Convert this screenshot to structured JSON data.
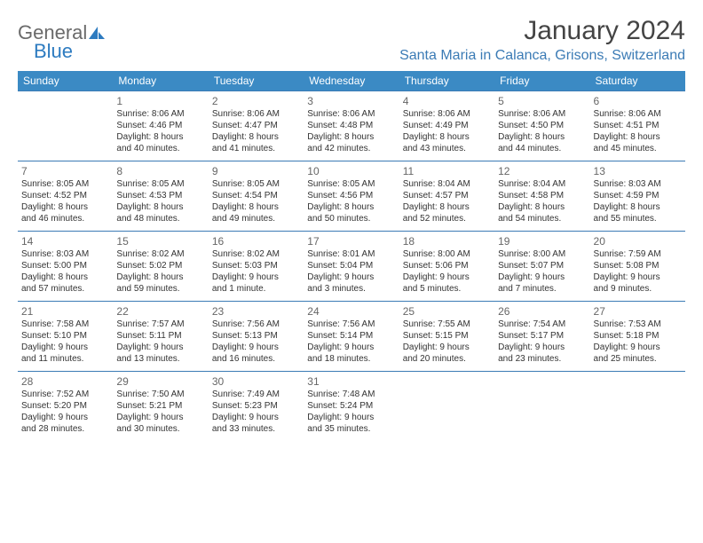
{
  "logo": {
    "word1": "General",
    "word2": "Blue"
  },
  "title": "January 2024",
  "location": "Santa Maria in Calanca, Grisons, Switzerland",
  "colors": {
    "header_bg": "#3b8ac4",
    "border": "#3b7bb5",
    "title_color": "#444444",
    "location_color": "#3b7bb5",
    "logo_gray": "#6a6a6a",
    "logo_blue": "#2d7bc0"
  },
  "fonts": {
    "title_size": 30,
    "location_size": 16,
    "day_header_size": 12,
    "cell_size": 10
  },
  "day_headers": [
    "Sunday",
    "Monday",
    "Tuesday",
    "Wednesday",
    "Thursday",
    "Friday",
    "Saturday"
  ],
  "weeks": [
    [
      null,
      {
        "n": "1",
        "sr": "Sunrise: 8:06 AM",
        "ss": "Sunset: 4:46 PM",
        "d1": "Daylight: 8 hours",
        "d2": "and 40 minutes."
      },
      {
        "n": "2",
        "sr": "Sunrise: 8:06 AM",
        "ss": "Sunset: 4:47 PM",
        "d1": "Daylight: 8 hours",
        "d2": "and 41 minutes."
      },
      {
        "n": "3",
        "sr": "Sunrise: 8:06 AM",
        "ss": "Sunset: 4:48 PM",
        "d1": "Daylight: 8 hours",
        "d2": "and 42 minutes."
      },
      {
        "n": "4",
        "sr": "Sunrise: 8:06 AM",
        "ss": "Sunset: 4:49 PM",
        "d1": "Daylight: 8 hours",
        "d2": "and 43 minutes."
      },
      {
        "n": "5",
        "sr": "Sunrise: 8:06 AM",
        "ss": "Sunset: 4:50 PM",
        "d1": "Daylight: 8 hours",
        "d2": "and 44 minutes."
      },
      {
        "n": "6",
        "sr": "Sunrise: 8:06 AM",
        "ss": "Sunset: 4:51 PM",
        "d1": "Daylight: 8 hours",
        "d2": "and 45 minutes."
      }
    ],
    [
      {
        "n": "7",
        "sr": "Sunrise: 8:05 AM",
        "ss": "Sunset: 4:52 PM",
        "d1": "Daylight: 8 hours",
        "d2": "and 46 minutes."
      },
      {
        "n": "8",
        "sr": "Sunrise: 8:05 AM",
        "ss": "Sunset: 4:53 PM",
        "d1": "Daylight: 8 hours",
        "d2": "and 48 minutes."
      },
      {
        "n": "9",
        "sr": "Sunrise: 8:05 AM",
        "ss": "Sunset: 4:54 PM",
        "d1": "Daylight: 8 hours",
        "d2": "and 49 minutes."
      },
      {
        "n": "10",
        "sr": "Sunrise: 8:05 AM",
        "ss": "Sunset: 4:56 PM",
        "d1": "Daylight: 8 hours",
        "d2": "and 50 minutes."
      },
      {
        "n": "11",
        "sr": "Sunrise: 8:04 AM",
        "ss": "Sunset: 4:57 PM",
        "d1": "Daylight: 8 hours",
        "d2": "and 52 minutes."
      },
      {
        "n": "12",
        "sr": "Sunrise: 8:04 AM",
        "ss": "Sunset: 4:58 PM",
        "d1": "Daylight: 8 hours",
        "d2": "and 54 minutes."
      },
      {
        "n": "13",
        "sr": "Sunrise: 8:03 AM",
        "ss": "Sunset: 4:59 PM",
        "d1": "Daylight: 8 hours",
        "d2": "and 55 minutes."
      }
    ],
    [
      {
        "n": "14",
        "sr": "Sunrise: 8:03 AM",
        "ss": "Sunset: 5:00 PM",
        "d1": "Daylight: 8 hours",
        "d2": "and 57 minutes."
      },
      {
        "n": "15",
        "sr": "Sunrise: 8:02 AM",
        "ss": "Sunset: 5:02 PM",
        "d1": "Daylight: 8 hours",
        "d2": "and 59 minutes."
      },
      {
        "n": "16",
        "sr": "Sunrise: 8:02 AM",
        "ss": "Sunset: 5:03 PM",
        "d1": "Daylight: 9 hours",
        "d2": "and 1 minute."
      },
      {
        "n": "17",
        "sr": "Sunrise: 8:01 AM",
        "ss": "Sunset: 5:04 PM",
        "d1": "Daylight: 9 hours",
        "d2": "and 3 minutes."
      },
      {
        "n": "18",
        "sr": "Sunrise: 8:00 AM",
        "ss": "Sunset: 5:06 PM",
        "d1": "Daylight: 9 hours",
        "d2": "and 5 minutes."
      },
      {
        "n": "19",
        "sr": "Sunrise: 8:00 AM",
        "ss": "Sunset: 5:07 PM",
        "d1": "Daylight: 9 hours",
        "d2": "and 7 minutes."
      },
      {
        "n": "20",
        "sr": "Sunrise: 7:59 AM",
        "ss": "Sunset: 5:08 PM",
        "d1": "Daylight: 9 hours",
        "d2": "and 9 minutes."
      }
    ],
    [
      {
        "n": "21",
        "sr": "Sunrise: 7:58 AM",
        "ss": "Sunset: 5:10 PM",
        "d1": "Daylight: 9 hours",
        "d2": "and 11 minutes."
      },
      {
        "n": "22",
        "sr": "Sunrise: 7:57 AM",
        "ss": "Sunset: 5:11 PM",
        "d1": "Daylight: 9 hours",
        "d2": "and 13 minutes."
      },
      {
        "n": "23",
        "sr": "Sunrise: 7:56 AM",
        "ss": "Sunset: 5:13 PM",
        "d1": "Daylight: 9 hours",
        "d2": "and 16 minutes."
      },
      {
        "n": "24",
        "sr": "Sunrise: 7:56 AM",
        "ss": "Sunset: 5:14 PM",
        "d1": "Daylight: 9 hours",
        "d2": "and 18 minutes."
      },
      {
        "n": "25",
        "sr": "Sunrise: 7:55 AM",
        "ss": "Sunset: 5:15 PM",
        "d1": "Daylight: 9 hours",
        "d2": "and 20 minutes."
      },
      {
        "n": "26",
        "sr": "Sunrise: 7:54 AM",
        "ss": "Sunset: 5:17 PM",
        "d1": "Daylight: 9 hours",
        "d2": "and 23 minutes."
      },
      {
        "n": "27",
        "sr": "Sunrise: 7:53 AM",
        "ss": "Sunset: 5:18 PM",
        "d1": "Daylight: 9 hours",
        "d2": "and 25 minutes."
      }
    ],
    [
      {
        "n": "28",
        "sr": "Sunrise: 7:52 AM",
        "ss": "Sunset: 5:20 PM",
        "d1": "Daylight: 9 hours",
        "d2": "and 28 minutes."
      },
      {
        "n": "29",
        "sr": "Sunrise: 7:50 AM",
        "ss": "Sunset: 5:21 PM",
        "d1": "Daylight: 9 hours",
        "d2": "and 30 minutes."
      },
      {
        "n": "30",
        "sr": "Sunrise: 7:49 AM",
        "ss": "Sunset: 5:23 PM",
        "d1": "Daylight: 9 hours",
        "d2": "and 33 minutes."
      },
      {
        "n": "31",
        "sr": "Sunrise: 7:48 AM",
        "ss": "Sunset: 5:24 PM",
        "d1": "Daylight: 9 hours",
        "d2": "and 35 minutes."
      },
      null,
      null,
      null
    ]
  ]
}
